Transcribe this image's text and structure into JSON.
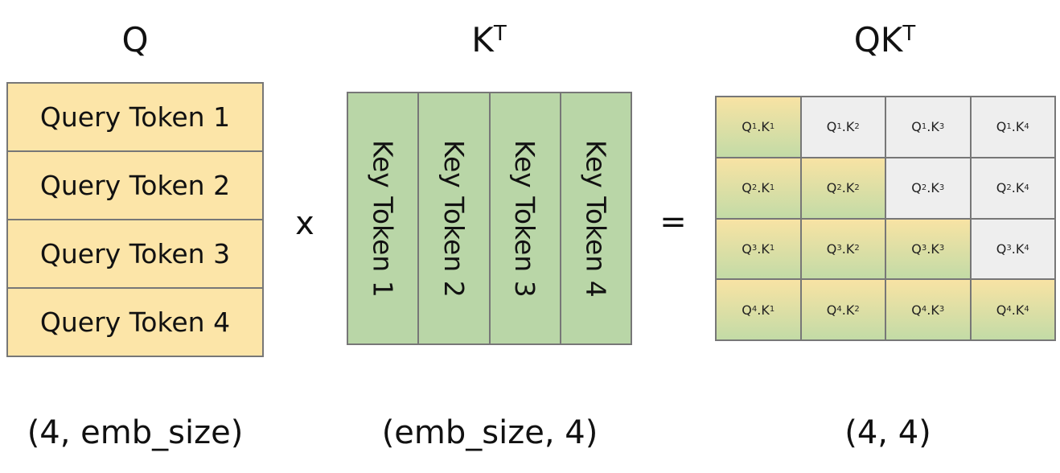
{
  "headings": {
    "q": "Q",
    "k_base": "K",
    "k_sup": "T",
    "qk_base": "QK",
    "qk_sup": "T"
  },
  "query_tokens": [
    "Query Token 1",
    "Query Token 2",
    "Query Token 3",
    "Query Token 4"
  ],
  "key_tokens": [
    "Key Token 1",
    "Key Token 2",
    "Key Token 3",
    "Key Token 4"
  ],
  "operators": {
    "times": "x",
    "equals": "="
  },
  "shapes": {
    "q": "(4, emb_size)",
    "k": "(emb_size, 4)",
    "qk": "(4, 4)"
  },
  "result_cells": {
    "q_letter": "Q",
    "k_letter": "K",
    "separator": ".",
    "rows": [
      {
        "q": "1",
        "cells": [
          {
            "k": "1",
            "active": true
          },
          {
            "k": "2",
            "active": false
          },
          {
            "k": "3",
            "active": false
          },
          {
            "k": "4",
            "active": false
          }
        ]
      },
      {
        "q": "2",
        "cells": [
          {
            "k": "1",
            "active": true
          },
          {
            "k": "2",
            "active": true
          },
          {
            "k": "3",
            "active": false
          },
          {
            "k": "4",
            "active": false
          }
        ]
      },
      {
        "q": "3",
        "cells": [
          {
            "k": "1",
            "active": true
          },
          {
            "k": "2",
            "active": true
          },
          {
            "k": "3",
            "active": true
          },
          {
            "k": "4",
            "active": false
          }
        ]
      },
      {
        "q": "4",
        "cells": [
          {
            "k": "1",
            "active": true
          },
          {
            "k": "2",
            "active": true
          },
          {
            "k": "3",
            "active": true
          },
          {
            "k": "4",
            "active": true
          }
        ]
      }
    ]
  },
  "colors": {
    "query_fill": "#fce5a8",
    "key_fill": "#b9d6a7",
    "masked_fill": "#eeeeee",
    "border": "#777777"
  }
}
